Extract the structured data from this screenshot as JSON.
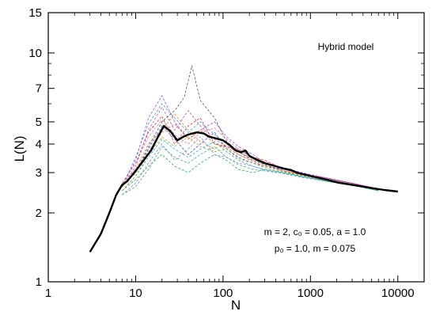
{
  "chart_data": {
    "type": "line",
    "xscale": "log",
    "yscale": "log",
    "xlim": [
      1,
      20000
    ],
    "ylim": [
      1,
      15
    ],
    "xlabel": "N",
    "ylabel": "L(N)",
    "x_ticks": [
      {
        "value": 1,
        "label": "1"
      },
      {
        "value": 10,
        "label": "10"
      },
      {
        "value": 100,
        "label": "100"
      },
      {
        "value": 1000,
        "label": "1000"
      },
      {
        "value": 10000,
        "label": "10000"
      }
    ],
    "y_ticks": [
      {
        "value": 1,
        "label": "1"
      },
      {
        "value": 2,
        "label": "2"
      },
      {
        "value": 3,
        "label": "3"
      },
      {
        "value": 4,
        "label": "4"
      },
      {
        "value": 5,
        "label": "5"
      },
      {
        "value": 7,
        "label": "7"
      },
      {
        "value": 10,
        "label": "10"
      },
      {
        "value": 15,
        "label": "15"
      }
    ],
    "annotations": {
      "title": "Hybrid model",
      "params_line1": "m = 2,   c₀ = 0.05,   a = 1.0",
      "params_line2": "p₀ = 1.0,   m = 0.075"
    },
    "mean_series": {
      "color": "#000000",
      "points": [
        [
          3,
          1.35
        ],
        [
          4,
          1.62
        ],
        [
          5,
          2.0
        ],
        [
          6,
          2.4
        ],
        [
          7,
          2.65
        ],
        [
          8,
          2.75
        ],
        [
          10,
          3.05
        ],
        [
          12,
          3.35
        ],
        [
          15,
          3.75
        ],
        [
          18,
          4.3
        ],
        [
          21,
          4.8
        ],
        [
          25,
          4.55
        ],
        [
          30,
          4.15
        ],
        [
          35,
          4.3
        ],
        [
          40,
          4.4
        ],
        [
          50,
          4.5
        ],
        [
          60,
          4.45
        ],
        [
          70,
          4.3
        ],
        [
          80,
          4.25
        ],
        [
          100,
          4.15
        ],
        [
          120,
          3.95
        ],
        [
          140,
          3.75
        ],
        [
          160,
          3.68
        ],
        [
          180,
          3.75
        ],
        [
          200,
          3.55
        ],
        [
          250,
          3.4
        ],
        [
          300,
          3.3
        ],
        [
          400,
          3.2
        ],
        [
          500,
          3.12
        ],
        [
          600,
          3.08
        ],
        [
          700,
          3.0
        ],
        [
          1000,
          2.9
        ],
        [
          1500,
          2.8
        ],
        [
          2000,
          2.72
        ],
        [
          3000,
          2.65
        ],
        [
          5000,
          2.57
        ],
        [
          7000,
          2.52
        ],
        [
          10000,
          2.48
        ]
      ]
    },
    "trial_series": [
      {
        "color": "#1f3fd9",
        "points": [
          [
            7,
            2.6
          ],
          [
            10,
            3.0
          ],
          [
            14,
            3.8
          ],
          [
            20,
            4.8
          ],
          [
            28,
            4.2
          ],
          [
            40,
            3.6
          ],
          [
            55,
            4.0
          ],
          [
            80,
            4.5
          ],
          [
            110,
            3.8
          ],
          [
            150,
            3.5
          ],
          [
            220,
            3.3
          ],
          [
            300,
            3.2
          ],
          [
            500,
            3.1
          ],
          [
            800,
            3.0
          ],
          [
            1500,
            2.8
          ],
          [
            3000,
            2.7
          ],
          [
            6000,
            2.55
          ]
        ]
      },
      {
        "color": "#d62020",
        "points": [
          [
            7,
            2.7
          ],
          [
            10,
            3.3
          ],
          [
            14,
            4.5
          ],
          [
            20,
            5.3
          ],
          [
            28,
            4.0
          ],
          [
            40,
            4.8
          ],
          [
            55,
            5.2
          ],
          [
            80,
            4.0
          ],
          [
            110,
            3.9
          ],
          [
            150,
            3.8
          ],
          [
            220,
            3.5
          ],
          [
            300,
            3.4
          ],
          [
            500,
            3.1
          ],
          [
            800,
            2.95
          ],
          [
            1500,
            2.85
          ],
          [
            3000,
            2.7
          ],
          [
            6000,
            2.5
          ]
        ]
      },
      {
        "color": "#23a23a",
        "points": [
          [
            7,
            2.5
          ],
          [
            10,
            2.8
          ],
          [
            14,
            3.2
          ],
          [
            20,
            3.6
          ],
          [
            28,
            3.2
          ],
          [
            40,
            3.0
          ],
          [
            55,
            3.3
          ],
          [
            80,
            3.6
          ],
          [
            110,
            3.4
          ],
          [
            150,
            3.1
          ],
          [
            220,
            3.0
          ],
          [
            300,
            3.1
          ],
          [
            500,
            3.0
          ],
          [
            800,
            2.9
          ],
          [
            1500,
            2.75
          ],
          [
            3000,
            2.65
          ],
          [
            6000,
            2.5
          ]
        ]
      },
      {
        "color": "#8a3fcf",
        "points": [
          [
            7,
            2.6
          ],
          [
            10,
            3.4
          ],
          [
            14,
            5.2
          ],
          [
            20,
            6.5
          ],
          [
            28,
            5.0
          ],
          [
            40,
            4.2
          ],
          [
            55,
            4.6
          ],
          [
            80,
            5.0
          ],
          [
            110,
            4.3
          ],
          [
            150,
            3.9
          ],
          [
            220,
            3.6
          ],
          [
            300,
            3.3
          ],
          [
            500,
            3.15
          ],
          [
            800,
            3.0
          ],
          [
            1500,
            2.85
          ],
          [
            3000,
            2.68
          ],
          [
            6000,
            2.55
          ]
        ]
      },
      {
        "color": "#e08020",
        "points": [
          [
            7,
            2.7
          ],
          [
            10,
            3.1
          ],
          [
            14,
            4.0
          ],
          [
            20,
            4.6
          ],
          [
            28,
            5.4
          ],
          [
            40,
            4.6
          ],
          [
            55,
            4.1
          ],
          [
            80,
            3.8
          ],
          [
            110,
            4.0
          ],
          [
            150,
            3.6
          ],
          [
            220,
            3.4
          ],
          [
            300,
            3.25
          ],
          [
            500,
            3.05
          ],
          [
            800,
            2.95
          ],
          [
            1500,
            2.8
          ],
          [
            3000,
            2.68
          ],
          [
            6000,
            2.52
          ]
        ]
      },
      {
        "color": "#16a5b8",
        "points": [
          [
            7,
            2.5
          ],
          [
            10,
            2.9
          ],
          [
            14,
            3.5
          ],
          [
            20,
            4.2
          ],
          [
            28,
            3.8
          ],
          [
            40,
            3.5
          ],
          [
            55,
            3.8
          ],
          [
            80,
            4.1
          ],
          [
            110,
            3.7
          ],
          [
            150,
            3.4
          ],
          [
            220,
            3.2
          ],
          [
            300,
            3.1
          ],
          [
            500,
            3.0
          ],
          [
            800,
            2.88
          ],
          [
            1500,
            2.78
          ],
          [
            3000,
            2.66
          ],
          [
            6000,
            2.5
          ]
        ]
      },
      {
        "color": "#c03ab0",
        "points": [
          [
            7,
            2.6
          ],
          [
            10,
            3.2
          ],
          [
            14,
            4.6
          ],
          [
            20,
            5.8
          ],
          [
            28,
            4.6
          ],
          [
            40,
            5.6
          ],
          [
            55,
            4.8
          ],
          [
            80,
            4.2
          ],
          [
            110,
            3.9
          ],
          [
            150,
            3.7
          ],
          [
            220,
            3.45
          ],
          [
            300,
            3.3
          ],
          [
            500,
            3.1
          ],
          [
            800,
            2.98
          ],
          [
            1500,
            2.82
          ],
          [
            3000,
            2.7
          ],
          [
            6000,
            2.55
          ]
        ]
      },
      {
        "color": "#444444",
        "points": [
          [
            7,
            2.6
          ],
          [
            10,
            3.0
          ],
          [
            14,
            3.9
          ],
          [
            20,
            5.0
          ],
          [
            28,
            5.6
          ],
          [
            36,
            6.4
          ],
          [
            44,
            8.8
          ],
          [
            55,
            6.2
          ],
          [
            80,
            5.2
          ],
          [
            110,
            4.1
          ],
          [
            150,
            3.7
          ],
          [
            220,
            3.4
          ],
          [
            300,
            3.25
          ],
          [
            500,
            3.05
          ],
          [
            800,
            2.92
          ],
          [
            1500,
            2.8
          ],
          [
            3000,
            2.66
          ],
          [
            6000,
            2.52
          ]
        ]
      },
      {
        "color": "#7b7bd0",
        "points": [
          [
            7,
            2.4
          ],
          [
            10,
            2.7
          ],
          [
            14,
            3.3
          ],
          [
            20,
            4.0
          ],
          [
            28,
            3.4
          ],
          [
            40,
            3.8
          ],
          [
            55,
            4.3
          ],
          [
            80,
            3.6
          ],
          [
            110,
            3.5
          ],
          [
            150,
            3.3
          ],
          [
            220,
            3.2
          ],
          [
            300,
            3.08
          ],
          [
            500,
            2.98
          ],
          [
            800,
            2.88
          ],
          [
            1500,
            2.77
          ],
          [
            3000,
            2.65
          ],
          [
            6000,
            2.5
          ]
        ]
      },
      {
        "color": "#e06fa0",
        "points": [
          [
            7,
            2.7
          ],
          [
            10,
            3.3
          ],
          [
            14,
            4.3
          ],
          [
            20,
            5.1
          ],
          [
            28,
            4.4
          ],
          [
            40,
            4.0
          ],
          [
            55,
            4.5
          ],
          [
            80,
            4.7
          ],
          [
            110,
            4.2
          ],
          [
            150,
            3.8
          ],
          [
            220,
            3.5
          ],
          [
            300,
            3.35
          ],
          [
            500,
            3.12
          ],
          [
            800,
            2.98
          ],
          [
            1500,
            2.84
          ],
          [
            3000,
            2.7
          ],
          [
            6000,
            2.55
          ]
        ]
      },
      {
        "color": "#9aa52a",
        "points": [
          [
            7,
            2.5
          ],
          [
            10,
            2.9
          ],
          [
            14,
            3.6
          ],
          [
            20,
            4.3
          ],
          [
            28,
            3.9
          ],
          [
            40,
            4.3
          ],
          [
            55,
            3.9
          ],
          [
            80,
            3.7
          ],
          [
            110,
            3.8
          ],
          [
            150,
            3.45
          ],
          [
            220,
            3.3
          ],
          [
            300,
            3.15
          ],
          [
            500,
            3.02
          ],
          [
            800,
            2.92
          ],
          [
            1500,
            2.78
          ],
          [
            3000,
            2.66
          ],
          [
            6000,
            2.52
          ]
        ]
      },
      {
        "color": "#3c8dd9",
        "points": [
          [
            7,
            2.6
          ],
          [
            10,
            3.5
          ],
          [
            14,
            4.9
          ],
          [
            20,
            6.0
          ],
          [
            28,
            5.2
          ],
          [
            40,
            4.5
          ],
          [
            55,
            5.0
          ],
          [
            80,
            4.4
          ],
          [
            110,
            4.0
          ],
          [
            150,
            3.75
          ],
          [
            220,
            3.5
          ],
          [
            300,
            3.3
          ],
          [
            500,
            3.1
          ],
          [
            800,
            2.96
          ],
          [
            1500,
            2.83
          ],
          [
            3000,
            2.68
          ],
          [
            6000,
            2.53
          ]
        ]
      },
      {
        "color": "#c45a3a",
        "points": [
          [
            7,
            2.6
          ],
          [
            10,
            3.1
          ],
          [
            14,
            3.7
          ],
          [
            20,
            4.5
          ],
          [
            28,
            4.9
          ],
          [
            40,
            4.2
          ],
          [
            55,
            4.6
          ],
          [
            80,
            4.0
          ],
          [
            110,
            3.85
          ],
          [
            150,
            3.6
          ],
          [
            220,
            3.35
          ],
          [
            300,
            3.2
          ],
          [
            500,
            3.05
          ],
          [
            800,
            2.93
          ],
          [
            1500,
            2.8
          ],
          [
            3000,
            2.67
          ],
          [
            6000,
            2.52
          ]
        ]
      },
      {
        "color": "#2aa37a",
        "points": [
          [
            7,
            2.4
          ],
          [
            10,
            2.6
          ],
          [
            14,
            3.1
          ],
          [
            20,
            3.9
          ],
          [
            28,
            3.5
          ],
          [
            40,
            3.3
          ],
          [
            55,
            3.6
          ],
          [
            80,
            3.9
          ],
          [
            110,
            3.5
          ],
          [
            150,
            3.25
          ],
          [
            220,
            3.1
          ],
          [
            300,
            3.05
          ],
          [
            500,
            2.97
          ],
          [
            800,
            2.86
          ],
          [
            1500,
            2.75
          ],
          [
            3000,
            2.64
          ],
          [
            6000,
            2.5
          ]
        ]
      }
    ]
  }
}
